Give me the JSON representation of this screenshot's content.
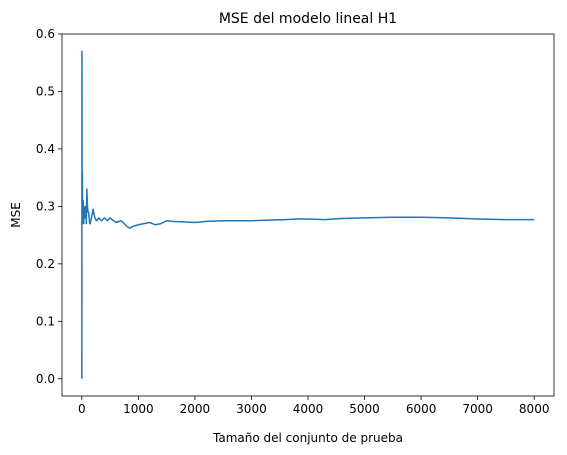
{
  "chart_data": {
    "type": "line",
    "title": "MSE del modelo lineal H1",
    "xlabel": "Tamaño del conjunto de prueba",
    "ylabel": "MSE",
    "xlim": [
      -350,
      8350
    ],
    "ylim": [
      -0.03,
      0.6
    ],
    "xticks": [
      0,
      1000,
      2000,
      3000,
      4000,
      5000,
      6000,
      7000,
      8000
    ],
    "yticks": [
      0.0,
      0.1,
      0.2,
      0.3,
      0.4,
      0.5,
      0.6
    ],
    "xtick_labels": [
      "0",
      "1000",
      "2000",
      "3000",
      "4000",
      "5000",
      "6000",
      "7000",
      "8000"
    ],
    "ytick_labels": [
      "0.0",
      "0.1",
      "0.2",
      "0.3",
      "0.4",
      "0.5",
      "0.6"
    ],
    "grid": false,
    "series": [
      {
        "name": "MSE",
        "color": "#1f77b4",
        "x": [
          1,
          2,
          3,
          5,
          8,
          10,
          12,
          15,
          18,
          20,
          25,
          30,
          35,
          40,
          45,
          50,
          60,
          70,
          80,
          90,
          100,
          110,
          120,
          130,
          140,
          150,
          170,
          200,
          230,
          260,
          300,
          350,
          400,
          450,
          500,
          600,
          700,
          800,
          850,
          900,
          1000,
          1100,
          1200,
          1300,
          1400,
          1500,
          1600,
          1800,
          2000,
          2200,
          2500,
          2800,
          3000,
          3300,
          3600,
          3800,
          4000,
          4300,
          4600,
          5000,
          5500,
          6000,
          6500,
          7000,
          7500,
          8000
        ],
        "values": [
          0.0,
          0.25,
          0.57,
          0.38,
          0.28,
          0.36,
          0.32,
          0.3,
          0.27,
          0.28,
          0.31,
          0.29,
          0.27,
          0.3,
          0.28,
          0.29,
          0.28,
          0.3,
          0.27,
          0.33,
          0.3,
          0.29,
          0.29,
          0.28,
          0.27,
          0.27,
          0.28,
          0.295,
          0.28,
          0.275,
          0.28,
          0.275,
          0.28,
          0.275,
          0.28,
          0.272,
          0.275,
          0.265,
          0.262,
          0.265,
          0.268,
          0.27,
          0.272,
          0.268,
          0.27,
          0.275,
          0.274,
          0.273,
          0.272,
          0.274,
          0.275,
          0.275,
          0.275,
          0.276,
          0.277,
          0.278,
          0.278,
          0.277,
          0.279,
          0.28,
          0.281,
          0.281,
          0.28,
          0.278,
          0.277,
          0.277
        ]
      }
    ]
  }
}
